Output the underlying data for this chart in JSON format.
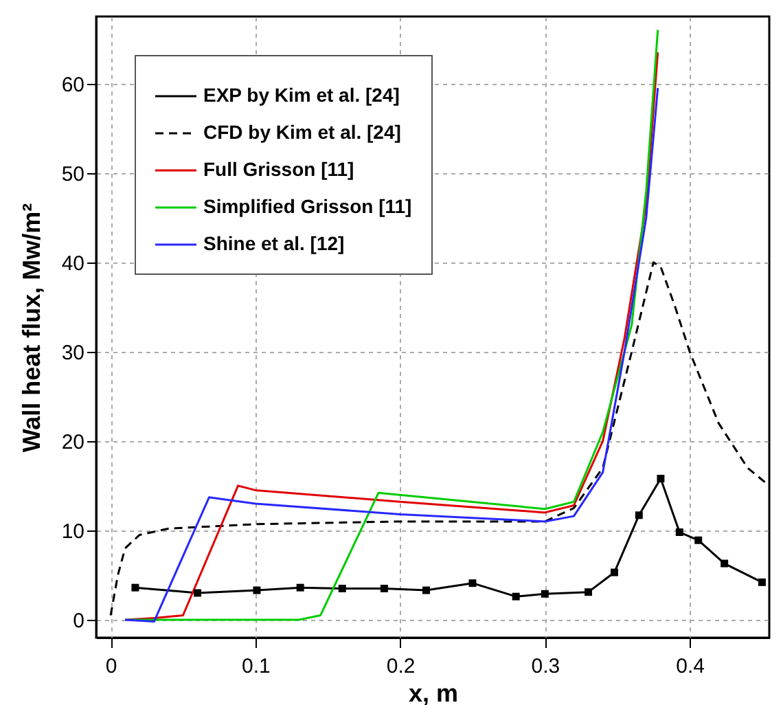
{
  "chart_data": {
    "type": "line",
    "xlabel": "x, m",
    "ylabel": "Wall heat flux, Mw/m²",
    "xlim": [
      -0.01,
      0.455
    ],
    "ylim": [
      -2,
      67.5
    ],
    "xticks": [
      0,
      0.1,
      0.2,
      0.3,
      0.4
    ],
    "yticks": [
      0,
      10,
      20,
      30,
      40,
      50,
      60
    ],
    "grid": true,
    "legend": "top left",
    "series": [
      {
        "name": "EXP by Kim et al. [24]",
        "color": "#000000",
        "marker": "square",
        "line_style": "solid",
        "x": [
          0.017,
          0.06,
          0.101,
          0.131,
          0.16,
          0.189,
          0.218,
          0.25,
          0.28,
          0.3,
          0.33,
          0.348,
          0.365,
          0.38,
          0.393,
          0.406,
          0.424,
          0.45
        ],
        "values": [
          3.6,
          3.0,
          3.3,
          3.6,
          3.5,
          3.5,
          3.3,
          4.1,
          2.6,
          2.9,
          3.1,
          5.3,
          11.7,
          15.8,
          9.8,
          8.9,
          6.3,
          4.2
        ]
      },
      {
        "name": "CFD by Kim et al. [24]",
        "color": "#000000",
        "marker": "none",
        "line_style": "dashed",
        "x": [
          0,
          0.005,
          0.01,
          0.02,
          0.04,
          0.1,
          0.2,
          0.3,
          0.32,
          0.34,
          0.36,
          0.375,
          0.38,
          0.39,
          0.4,
          0.42,
          0.44,
          0.455
        ],
        "values": [
          0.5,
          5,
          8,
          9.5,
          10.2,
          10.7,
          11,
          11,
          12.5,
          17,
          30,
          40,
          39.5,
          35,
          30,
          22,
          17,
          15
        ]
      },
      {
        "name": "Full Grisson [11]",
        "color": "#e00000",
        "marker": "none",
        "line_style": "solid",
        "x": [
          0.01,
          0.03,
          0.05,
          0.088,
          0.1,
          0.2,
          0.3,
          0.32,
          0.34,
          0.355,
          0.37,
          0.378
        ],
        "values": [
          0,
          0.2,
          0.5,
          15,
          14.5,
          13.2,
          12,
          12.8,
          20,
          31.5,
          46.5,
          63.5
        ]
      },
      {
        "name": "Simplified Grisson [11]",
        "color": "#00cc00",
        "marker": "none",
        "line_style": "solid",
        "x": [
          0.01,
          0.13,
          0.145,
          0.185,
          0.3,
          0.32,
          0.34,
          0.36,
          0.37,
          0.378
        ],
        "values": [
          0,
          0,
          0.5,
          14.2,
          12.4,
          13.2,
          21,
          33,
          48,
          66
        ]
      },
      {
        "name": "Shine et al. [12]",
        "color": "#2828ff",
        "marker": "none",
        "line_style": "solid",
        "x": [
          0.01,
          0.03,
          0.068,
          0.1,
          0.2,
          0.3,
          0.32,
          0.34,
          0.355,
          0.37,
          0.378
        ],
        "values": [
          0,
          -0.2,
          13.7,
          13,
          11.8,
          11,
          11.6,
          16.5,
          30,
          45,
          59.5
        ]
      }
    ]
  }
}
